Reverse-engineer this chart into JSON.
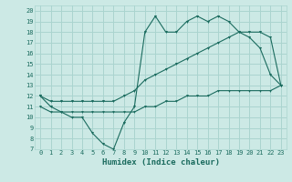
{
  "title": "",
  "xlabel": "Humidex (Indice chaleur)",
  "ylabel": "",
  "bg_color": "#cce9e5",
  "line_color": "#1a6b5e",
  "grid_color": "#aad4cf",
  "xlim": [
    -0.5,
    23.5
  ],
  "ylim": [
    7,
    20.5
  ],
  "xticks": [
    0,
    1,
    2,
    3,
    4,
    5,
    6,
    7,
    8,
    9,
    10,
    11,
    12,
    13,
    14,
    15,
    16,
    17,
    18,
    19,
    20,
    21,
    22,
    23
  ],
  "yticks": [
    7,
    8,
    9,
    10,
    11,
    12,
    13,
    14,
    15,
    16,
    17,
    18,
    19,
    20
  ],
  "line1_x": [
    0,
    1,
    2,
    3,
    4,
    5,
    6,
    7,
    8,
    9,
    10,
    11,
    12,
    13,
    14,
    15,
    16,
    17,
    18,
    19,
    20,
    21,
    22,
    23
  ],
  "line1_y": [
    12,
    11,
    10.5,
    10,
    10,
    8.5,
    7.5,
    7,
    9.5,
    11,
    18,
    19.5,
    18,
    18,
    19,
    19.5,
    19,
    19.5,
    19,
    18,
    17.5,
    16.5,
    14,
    13
  ],
  "line2_x": [
    0,
    1,
    2,
    3,
    4,
    5,
    6,
    7,
    8,
    9,
    10,
    11,
    12,
    13,
    14,
    15,
    16,
    17,
    18,
    19,
    20,
    21,
    22,
    23
  ],
  "line2_y": [
    12,
    11.5,
    11.5,
    11.5,
    11.5,
    11.5,
    11.5,
    11.5,
    12,
    12.5,
    13.5,
    14,
    14.5,
    15,
    15.5,
    16,
    16.5,
    17,
    17.5,
    18,
    18,
    18,
    17.5,
    13
  ],
  "line3_x": [
    0,
    1,
    2,
    3,
    4,
    5,
    6,
    7,
    8,
    9,
    10,
    11,
    12,
    13,
    14,
    15,
    16,
    17,
    18,
    19,
    20,
    21,
    22,
    23
  ],
  "line3_y": [
    11,
    10.5,
    10.5,
    10.5,
    10.5,
    10.5,
    10.5,
    10.5,
    10.5,
    10.5,
    11,
    11,
    11.5,
    11.5,
    12,
    12,
    12,
    12.5,
    12.5,
    12.5,
    12.5,
    12.5,
    12.5,
    13
  ]
}
